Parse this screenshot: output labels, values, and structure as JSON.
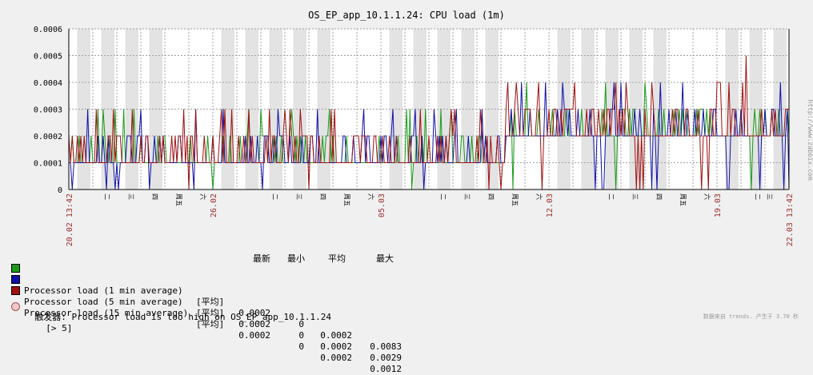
{
  "title": "OS_EP_app_10.1.1.24: CPU load (1m)",
  "colors": {
    "series": [
      "#1a9a1a",
      "#1010a8",
      "#a01010"
    ],
    "grid": "#a0a0a0",
    "background": "#ffffff",
    "shade": "#e3e3e3",
    "date_label": "#a03030",
    "trigger": "#f2c9c9"
  },
  "chart_data": {
    "type": "line",
    "title": "OS_EP_app_10.1.1.24: CPU load (1m)",
    "xlabel": "",
    "ylabel": "",
    "x_range": [
      "20.02 13:42",
      "22.03 13:42"
    ],
    "ylim": [
      0,
      0.0006
    ],
    "yticks": [
      "0",
      "0.0001",
      "0.0002",
      "0.0003",
      "0.0004",
      "0.0005",
      "0.0006"
    ],
    "grid": true,
    "date_labels": [
      "20.02 13:42",
      "26.02",
      "05.03",
      "12.03",
      "19.03",
      "22.03 13:42"
    ],
    "day_labels": [
      "二",
      "三",
      "四",
      "周五",
      "六",
      "二",
      "三",
      "四",
      "周五",
      "六",
      "二",
      "三",
      "四",
      "周五",
      "六",
      "二",
      "三",
      "四",
      "周五",
      "六",
      "二",
      "三"
    ],
    "series": [
      {
        "name": "Processor load (1 min average)",
        "summary": {
          "last": "0.0002",
          "min": "0",
          "avg": "0.0002",
          "max": "0.0083"
        },
        "spikes": [
          {
            "x": "26.02",
            "y": 0
          },
          {
            "x": "28.02",
            "y": 0
          },
          {
            "x": "01.03",
            "y": 0.0003
          },
          {
            "x": "03.03",
            "y": 0.0003
          },
          {
            "x": "05.03",
            "y": 0
          },
          {
            "x": "11.03",
            "y": 0.0003
          },
          {
            "x": "13.03",
            "y": 0.0004
          },
          {
            "x": "15.03",
            "y": 0.0003
          },
          {
            "x": "17.03",
            "y": 0.0001
          }
        ]
      },
      {
        "name": "Processor load (5 min average)",
        "summary": {
          "last": "0.0002",
          "min": "0",
          "avg": "0.0002",
          "max": "0.0029"
        },
        "spikes": [
          {
            "x": "20.02",
            "y": 0.0003
          },
          {
            "x": "24.02",
            "y": 0
          },
          {
            "x": "27.02",
            "y": 0
          },
          {
            "x": "06.03",
            "y": 0
          },
          {
            "x": "08.03",
            "y": 0
          },
          {
            "x": "09.03",
            "y": 0
          },
          {
            "x": "11.03",
            "y": 0.0004
          },
          {
            "x": "16.03",
            "y": 0.0003
          },
          {
            "x": "22.03",
            "y": 0.0004
          }
        ]
      },
      {
        "name": "Processor load (15 min average)",
        "summary": {
          "last": "0.0002",
          "min": "0",
          "avg": "0.0002",
          "max": "0.0012"
        },
        "baseline_before_12_03": 0.0001,
        "baseline_after_12_03": 0.0002,
        "peak": {
          "x": "21.03",
          "y": 0.0005
        }
      }
    ]
  },
  "legend": {
    "headers": {
      "last": "最新",
      "min": "最小",
      "avg": "平均",
      "max": "最大"
    },
    "func_tag": "[平均]"
  },
  "trigger": {
    "text": "触发器: Processor load is too high on OS_EP_app_10.1.1.24",
    "threshold": "[> 5]"
  },
  "side_credit": "http://www.zabbix.com",
  "footer": "数据来自 trends. 产生于 3.70 秒"
}
